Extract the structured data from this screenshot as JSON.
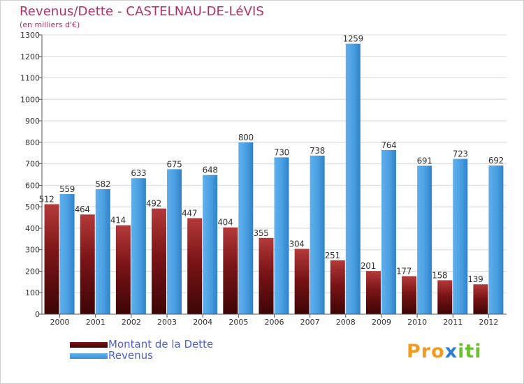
{
  "title": "Revenus/Dette - CASTELNAU-DE-LéVIS",
  "subtitle": "(en milliers d'€)",
  "logo": {
    "letters": [
      "P",
      "r",
      "o",
      "x",
      "i",
      "t",
      "i"
    ],
    "colors": [
      "#f29b1e",
      "#f29b1e",
      "#f29b1e",
      "#2f7fd1",
      "#6abf2f",
      "#6abf2f",
      "#6abf2f"
    ]
  },
  "chart_data": {
    "type": "bar",
    "title": "Revenus/Dette - CASTELNAU-DE-LéVIS",
    "ylabel": "(en milliers d'€)",
    "xlabel": "",
    "ylim": [
      0,
      1300
    ],
    "yticks": [
      0,
      100,
      200,
      300,
      400,
      500,
      600,
      700,
      800,
      900,
      1000,
      1100,
      1200,
      1300
    ],
    "grid": true,
    "legend_position": "bottom-left",
    "categories": [
      "2000",
      "2001",
      "2002",
      "2003",
      "2004",
      "2005",
      "2006",
      "2007",
      "2008",
      "2009",
      "2010",
      "2011",
      "2012"
    ],
    "series": [
      {
        "name": "Montant de la Dette",
        "color": "#6b0f10",
        "values": [
          512,
          464,
          414,
          492,
          447,
          404,
          355,
          304,
          251,
          201,
          177,
          158,
          139
        ]
      },
      {
        "name": "Revenus",
        "color": "#4a9ee0",
        "values": [
          559,
          582,
          633,
          675,
          648,
          800,
          730,
          738,
          1259,
          764,
          691,
          723,
          692
        ]
      }
    ]
  }
}
